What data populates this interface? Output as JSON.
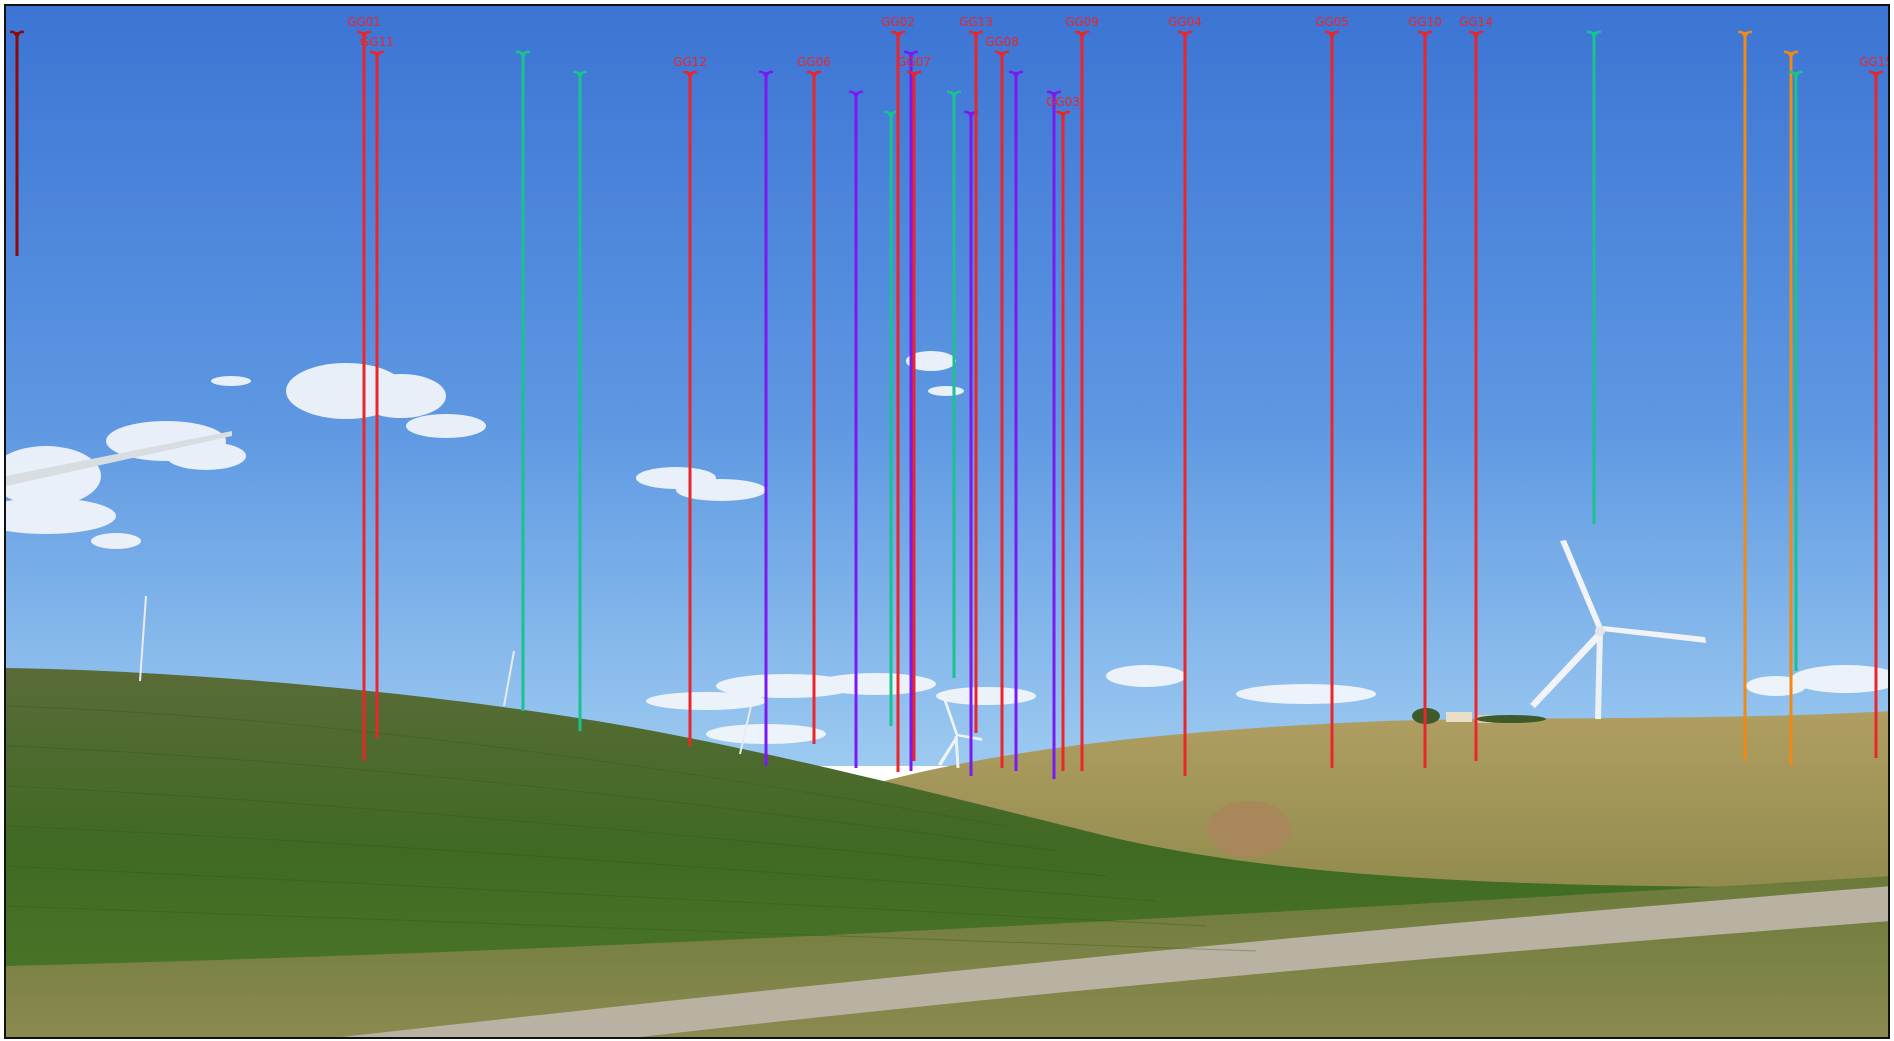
{
  "image": {
    "subject": "Photomontage of a wind farm over rolling green and tan fields under a blue sky, with coloured vertical marker lines showing turbine positions",
    "colors": {
      "sky_top": "#3f78d6",
      "sky_bottom": "#8fc3ef",
      "field_green": "#4c6a2a",
      "field_tan": "#a8975a",
      "road": "#b9b2a2"
    }
  },
  "markers": {
    "colors": {
      "red": "#e8262b",
      "purple": "#7a1af0",
      "teal": "#19c28f",
      "orange": "#f08a12",
      "darkred": "#8b0a0a"
    },
    "labels": [
      {
        "text": "GG01",
        "color": "red"
      },
      {
        "text": "GG11",
        "color": "red"
      },
      {
        "text": "GG12",
        "color": "red"
      },
      {
        "text": "GG06",
        "color": "red"
      },
      {
        "text": "GG02",
        "color": "red"
      },
      {
        "text": "GG07",
        "color": "red"
      },
      {
        "text": "GG13",
        "color": "red"
      },
      {
        "text": "GG08",
        "color": "red"
      },
      {
        "text": "GG03",
        "color": "red"
      },
      {
        "text": "GG09",
        "color": "red"
      },
      {
        "text": "GG04",
        "color": "red"
      },
      {
        "text": "GG05",
        "color": "red"
      },
      {
        "text": "GG10",
        "color": "red"
      },
      {
        "text": "GG14",
        "color": "red"
      },
      {
        "text": "GG15",
        "color": "red"
      }
    ]
  }
}
